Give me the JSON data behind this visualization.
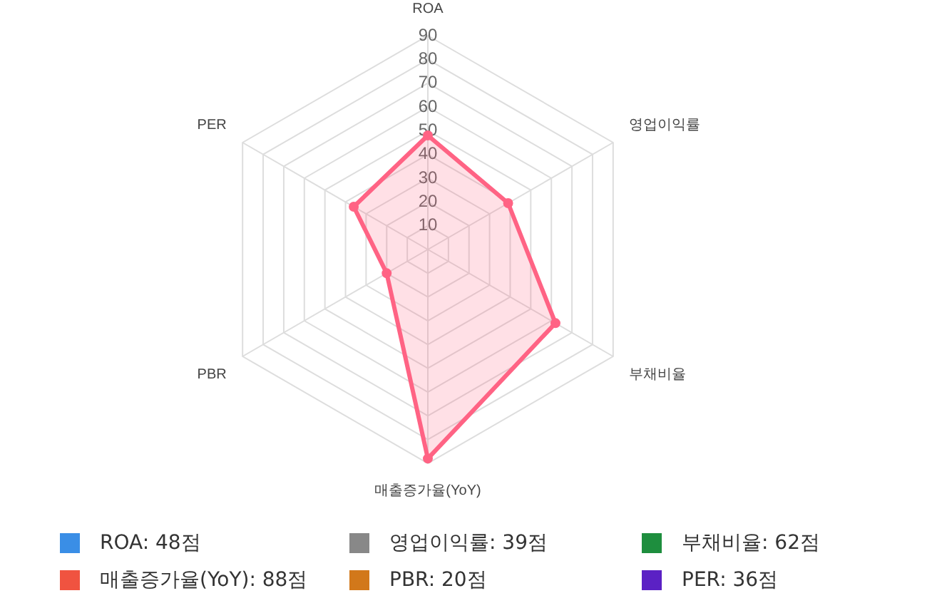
{
  "chart_data": {
    "type": "radar",
    "categories": [
      "ROA",
      "영업이익률",
      "부채비율",
      "매출증가율(YoY)",
      "PBR",
      "PER"
    ],
    "series": [
      {
        "color": "#ff6384",
        "values": [
          48,
          39,
          62,
          88,
          20,
          36
        ]
      }
    ],
    "ylim": [
      0,
      90
    ],
    "yticks": [
      10,
      20,
      30,
      40,
      50,
      60,
      70,
      80,
      90
    ],
    "grid": true,
    "legend": false,
    "marker": "circle",
    "annotations": [
      "ROA: 48점",
      "영업이익률: 39점",
      "부채비율: 62점",
      "매출증가율(YoY): 88점",
      "PBR: 20점",
      "PER: 36점"
    ]
  }
}
